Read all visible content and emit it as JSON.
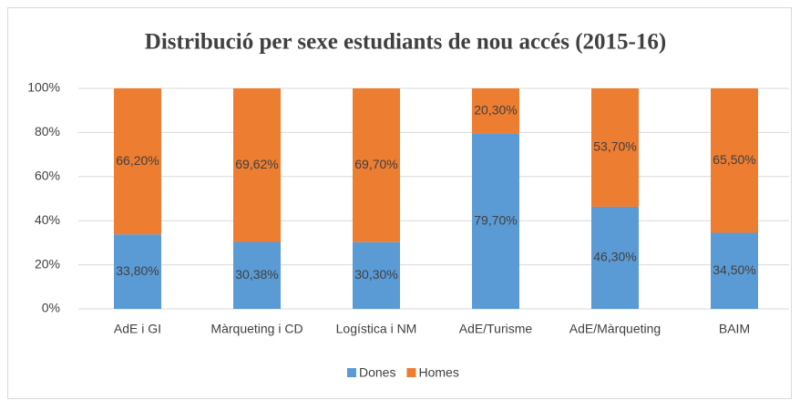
{
  "chart_data": {
    "type": "stacked_bar",
    "title": "Distribució per sexe estudiants de nou accés (2015-16)",
    "categories": [
      "AdE i GI",
      "Màrqueting i CD",
      "Logística i NM",
      "AdE/Turisme",
      "AdE/Màrqueting",
      "BAIM"
    ],
    "series": [
      {
        "name": "Dones",
        "color": "#5b9bd5",
        "values": [
          33.8,
          30.38,
          30.3,
          79.7,
          46.3,
          34.5
        ],
        "value_labels": [
          "33,80%",
          "30,38%",
          "30,30%",
          "79,70%",
          "46,30%",
          "34,50%"
        ]
      },
      {
        "name": "Homes",
        "color": "#ed7d31",
        "values": [
          66.2,
          69.62,
          69.7,
          20.3,
          53.7,
          65.5
        ],
        "value_labels": [
          "66,20%",
          "69,62%",
          "69,70%",
          "20,30%",
          "53,70%",
          "65,50%"
        ]
      }
    ],
    "ylim": [
      0,
      100
    ],
    "yticks": [
      {
        "value": 0,
        "label": "0%"
      },
      {
        "value": 20,
        "label": "20%"
      },
      {
        "value": 40,
        "label": "40%"
      },
      {
        "value": 60,
        "label": "60%"
      },
      {
        "value": 80,
        "label": "80%"
      },
      {
        "value": 100,
        "label": "100%"
      }
    ],
    "grid": true,
    "legend": "bottom"
  }
}
